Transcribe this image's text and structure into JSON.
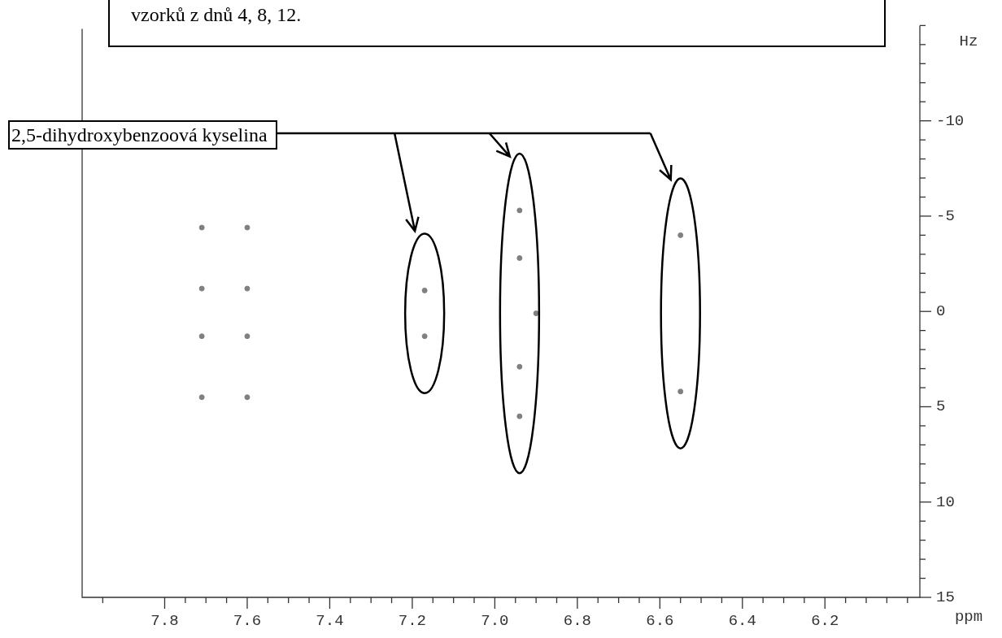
{
  "chart_data": {
    "type": "scatter",
    "xlabel": "ppm",
    "ylabel": "Hz",
    "legend": false,
    "marker": "circle",
    "annotations": [
      "vzorků z dnů 4, 8, 12.",
      "2,5-dihydroxybenzoová kyselina"
    ],
    "xlim": [
      8.0,
      5.97
    ],
    "ylim": [
      15,
      -15
    ],
    "xticks": [
      {
        "value": 7.95,
        "label": null
      },
      7.8,
      {
        "value": 7.75,
        "label": null
      },
      {
        "value": 7.7,
        "label": null
      },
      {
        "value": 7.65,
        "label": null
      },
      7.6,
      {
        "value": 7.55,
        "label": null
      },
      {
        "value": 7.5,
        "label": null
      },
      {
        "value": 7.45,
        "label": null
      },
      7.4,
      {
        "value": 7.35,
        "label": null
      },
      {
        "value": 7.3,
        "label": null
      },
      {
        "value": 7.25,
        "label": null
      },
      7.2,
      {
        "value": 7.15,
        "label": null
      },
      {
        "value": 7.1,
        "label": null
      },
      {
        "value": 7.05,
        "label": null
      },
      {
        "value": 7.0,
        "label": "7.0"
      },
      {
        "value": 6.95,
        "label": null
      },
      {
        "value": 6.9,
        "label": null
      },
      {
        "value": 6.85,
        "label": null
      },
      6.8,
      {
        "value": 6.75,
        "label": null
      },
      {
        "value": 6.7,
        "label": null
      },
      {
        "value": 6.65,
        "label": null
      },
      6.6,
      {
        "value": 6.55,
        "label": null
      },
      {
        "value": 6.5,
        "label": null
      },
      {
        "value": 6.45,
        "label": null
      },
      6.4,
      {
        "value": 6.35,
        "label": null
      },
      {
        "value": 6.3,
        "label": null
      },
      {
        "value": 6.25,
        "label": null
      },
      6.2,
      {
        "value": 6.15,
        "label": null
      },
      {
        "value": 6.1,
        "label": null
      },
      {
        "value": 6.05,
        "label": null
      },
      {
        "value": 6.0,
        "label": null
      }
    ],
    "yticks": [
      {
        "value": -15,
        "label": null
      },
      {
        "value": -14,
        "label": null
      },
      {
        "value": -13,
        "label": null
      },
      {
        "value": -12,
        "label": null
      },
      {
        "value": -11,
        "label": null
      },
      -10,
      {
        "value": -9,
        "label": null
      },
      {
        "value": -8,
        "label": null
      },
      {
        "value": -7,
        "label": null
      },
      {
        "value": -6,
        "label": null
      },
      -5,
      {
        "value": -4,
        "label": null
      },
      {
        "value": -3,
        "label": null
      },
      {
        "value": -2,
        "label": null
      },
      {
        "value": -1,
        "label": null
      },
      0,
      {
        "value": 1,
        "label": null
      },
      {
        "value": 2,
        "label": null
      },
      {
        "value": 3,
        "label": null
      },
      {
        "value": 4,
        "label": null
      },
      5,
      {
        "value": 6,
        "label": null
      },
      {
        "value": 7,
        "label": null
      },
      {
        "value": 8,
        "label": null
      },
      {
        "value": 9,
        "label": null
      },
      10,
      {
        "value": 11,
        "label": null
      },
      {
        "value": 12,
        "label": null
      },
      {
        "value": 13,
        "label": null
      },
      {
        "value": 14,
        "label": null
      },
      15
    ],
    "series": [
      {
        "color": "#808080",
        "x": [
          7.71,
          7.71,
          7.71,
          7.71,
          7.6,
          7.6,
          7.6,
          7.6,
          6.9
        ],
        "values": [
          -4.4,
          -1.2,
          1.3,
          4.5,
          -4.4,
          -1.2,
          1.3,
          4.5,
          0.1
        ]
      },
      {
        "color": "#808080",
        "x": [
          7.17,
          7.17
        ],
        "values": [
          -1.1,
          1.3
        ]
      },
      {
        "color": "#808080",
        "x": [
          6.94,
          6.94,
          6.94,
          6.94
        ],
        "values": [
          -5.3,
          -2.8,
          2.9,
          5.5
        ]
      },
      {
        "color": "#808080",
        "x": [
          6.55,
          6.55
        ],
        "values": [
          -4.0,
          4.2
        ]
      }
    ]
  }
}
